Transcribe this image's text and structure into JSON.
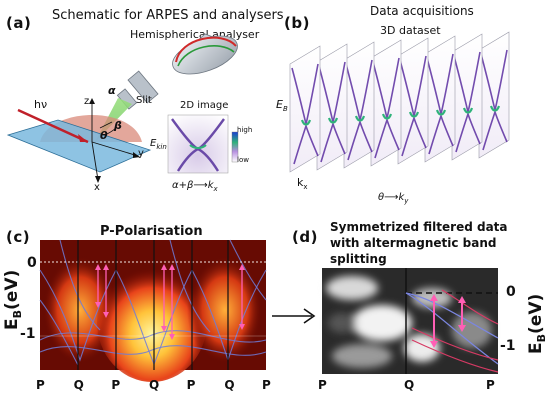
{
  "panel_a": {
    "letter": "(a)",
    "title": "Schematic for ARPES and analysers",
    "subtitle": "Hemispherical analyser",
    "labels": {
      "photon": "hν",
      "alpha": "α",
      "slit": "Slit",
      "z": "z",
      "theta": "θ",
      "beta": "β",
      "y": "y",
      "x": "x",
      "image2d": "2D image",
      "ekin": "E",
      "ekin_sub": "kin",
      "high": "high",
      "low": "low",
      "mapping": "α+β⟶k",
      "mapping_sub": "x"
    }
  },
  "panel_b": {
    "letter": "(b)",
    "title": "Data acquisitions",
    "subtitle": "3D dataset",
    "labels": {
      "eb": "E",
      "eb_sub": "B",
      "kx": "k",
      "kx_sub": "x",
      "mapping": "θ⟶k",
      "mapping_sub": "y"
    },
    "slice_count": 8
  },
  "panel_c": {
    "letter": "(c)",
    "title": "P-Polarisation",
    "y_label": "E",
    "y_label_sub": "B",
    "y_label_unit": "(eV)",
    "y_ticks": [
      "0",
      "-1"
    ],
    "x_ticks": [
      "P",
      "Q",
      "P",
      "Q",
      "P",
      "Q",
      "P"
    ]
  },
  "panel_d": {
    "letter": "(d)",
    "title_line1": "Symmetrized filtered data",
    "title_line2": "with altermagnetic band",
    "title_line3": "splitting",
    "y_label": "E",
    "y_label_sub": "B",
    "y_label_unit": "(eV)",
    "y_ticks": [
      "0",
      "-1"
    ],
    "x_ticks": [
      "P",
      "Q",
      "P"
    ]
  },
  "colors": {
    "heat_hot": "#ffe36a",
    "heat_mid": "#e8431a",
    "heat_dark": "#2a0000",
    "band_line": "#6f7bd8",
    "arrow_pink": "#ff5fb5",
    "spectrum_purple": "#5b2ea0",
    "spectrum_green": "#2fb37a"
  }
}
